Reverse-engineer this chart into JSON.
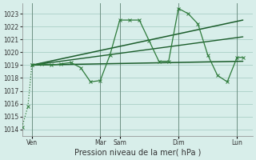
{
  "bg_color": "#d8eeea",
  "grid_color": "#b0d4cc",
  "line_color_dark": "#1a5c2a",
  "line_color_med": "#2d7a3a",
  "xlabel": "Pression niveau de la mer( hPa )",
  "day_labels": [
    "Ven",
    "Mar",
    "Sam",
    "Dim",
    "Lun"
  ],
  "day_positions": [
    0.5,
    4.0,
    5.0,
    8.0,
    11.0
  ],
  "xlim": [
    0.0,
    11.8
  ],
  "yticks": [
    1014,
    1015,
    1016,
    1017,
    1018,
    1019,
    1020,
    1021,
    1022,
    1023
  ],
  "ylim": [
    1013.5,
    1023.8
  ],
  "main_x": [
    0.0,
    0.3,
    0.5,
    1.0,
    1.5,
    2.0,
    2.5,
    3.0,
    3.5,
    4.0,
    4.5,
    5.0,
    5.5,
    6.0,
    6.5,
    7.0,
    7.5,
    8.0,
    8.5,
    9.0,
    9.5,
    10.0,
    10.5,
    11.0,
    11.3
  ],
  "main_y": [
    1014.2,
    1015.8,
    1019.0,
    1019.1,
    1019.0,
    1019.1,
    1019.2,
    1018.8,
    1017.7,
    1017.8,
    1019.8,
    1022.5,
    1022.5,
    1022.5,
    1020.9,
    1019.3,
    1019.3,
    1023.4,
    1023.0,
    1022.2,
    1019.8,
    1018.2,
    1017.7,
    1019.6,
    1019.6
  ],
  "dotted_end_idx": 2,
  "trend1_x": [
    0.5,
    11.3
  ],
  "trend1_y": [
    1019.0,
    1019.3
  ],
  "trend2_x": [
    0.5,
    11.3
  ],
  "trend2_y": [
    1019.0,
    1022.5
  ],
  "trend3_x": [
    0.5,
    11.3
  ],
  "trend3_y": [
    1019.0,
    1021.2
  ],
  "vline_positions": [
    0.5,
    4.0,
    5.0,
    8.0,
    11.0
  ],
  "vline_color": "#446655",
  "xlabel_fontsize": 7.0,
  "tick_fontsize": 5.5
}
